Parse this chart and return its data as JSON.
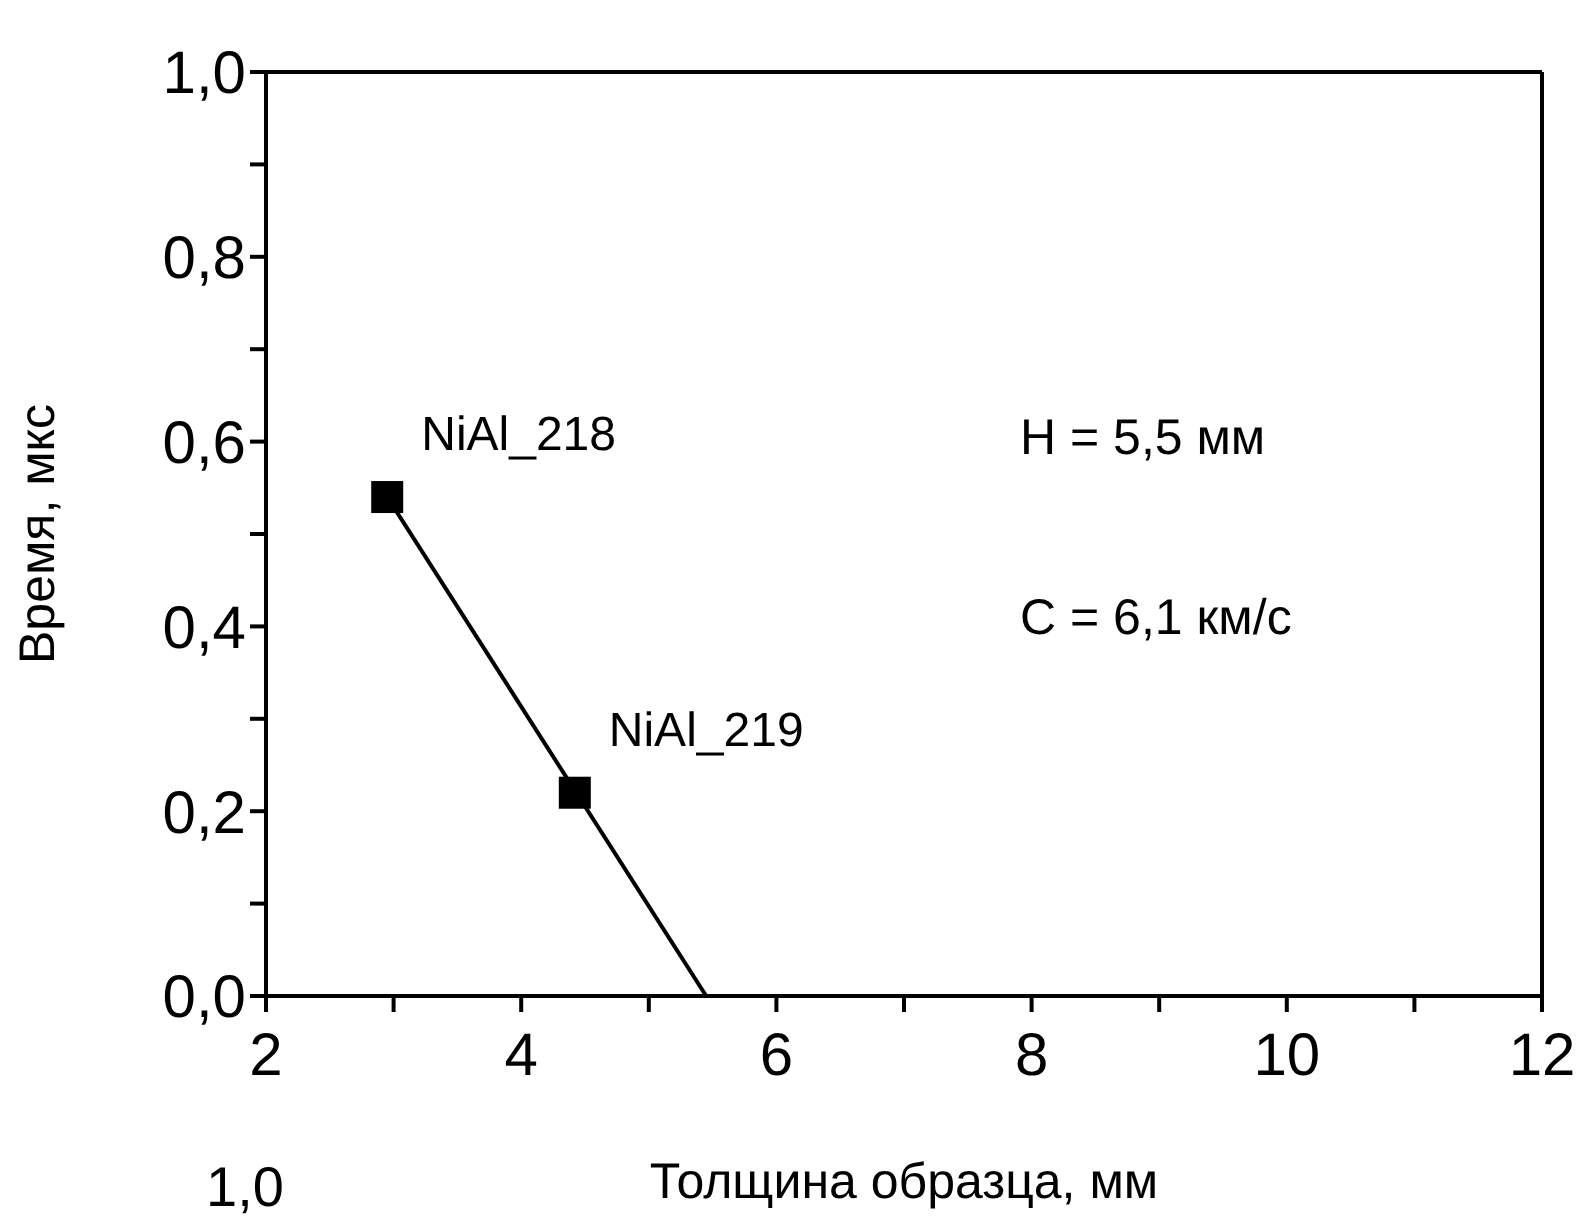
{
  "chart_data": {
    "type": "scatter",
    "xlabel": "Толщина образца, мм",
    "ylabel": "Время, мкс",
    "xlim": [
      2,
      12
    ],
    "xticks": [
      2,
      {
        "value": 3,
        "label": null
      },
      4,
      {
        "value": 5,
        "label": null
      },
      6,
      {
        "value": 7,
        "label": null
      },
      8,
      {
        "value": 9,
        "label": null
      },
      10,
      {
        "value": 11,
        "label": null
      },
      12
    ],
    "ylim": [
      0,
      1
    ],
    "yticks": [
      {
        "value": 0,
        "label": "0,0"
      },
      {
        "value": 0.1,
        "label": null
      },
      {
        "value": 0.2,
        "label": "0,2"
      },
      {
        "value": 0.3,
        "label": null
      },
      {
        "value": 0.4,
        "label": "0,4"
      },
      {
        "value": 0.5,
        "label": null
      },
      {
        "value": 0.6,
        "label": "0,6"
      },
      {
        "value": 0.7,
        "label": null
      },
      {
        "value": 0.8,
        "label": "0,8"
      },
      {
        "value": 0.9,
        "label": null
      },
      {
        "value": 1,
        "label": "1,0"
      }
    ],
    "grid": false,
    "series": [
      {
        "x": [
          2.95,
          4.42
        ],
        "values": [
          0.54,
          0.22
        ],
        "color": "#000000",
        "marker": "square"
      },
      {
        "type": "line",
        "x": [
          2.95,
          5.45
        ],
        "values": [
          0.54,
          0
        ],
        "color": "#000000",
        "marker": "none"
      }
    ],
    "annotations": [
      {
        "text": "NiAl_218",
        "x": 2.95,
        "y": 0.54
      },
      {
        "text": "NiAl_219",
        "x": 4.42,
        "y": 0.22
      },
      "H = 5,5 мм",
      "C = 6,1 км/с",
      "1,0"
    ]
  }
}
